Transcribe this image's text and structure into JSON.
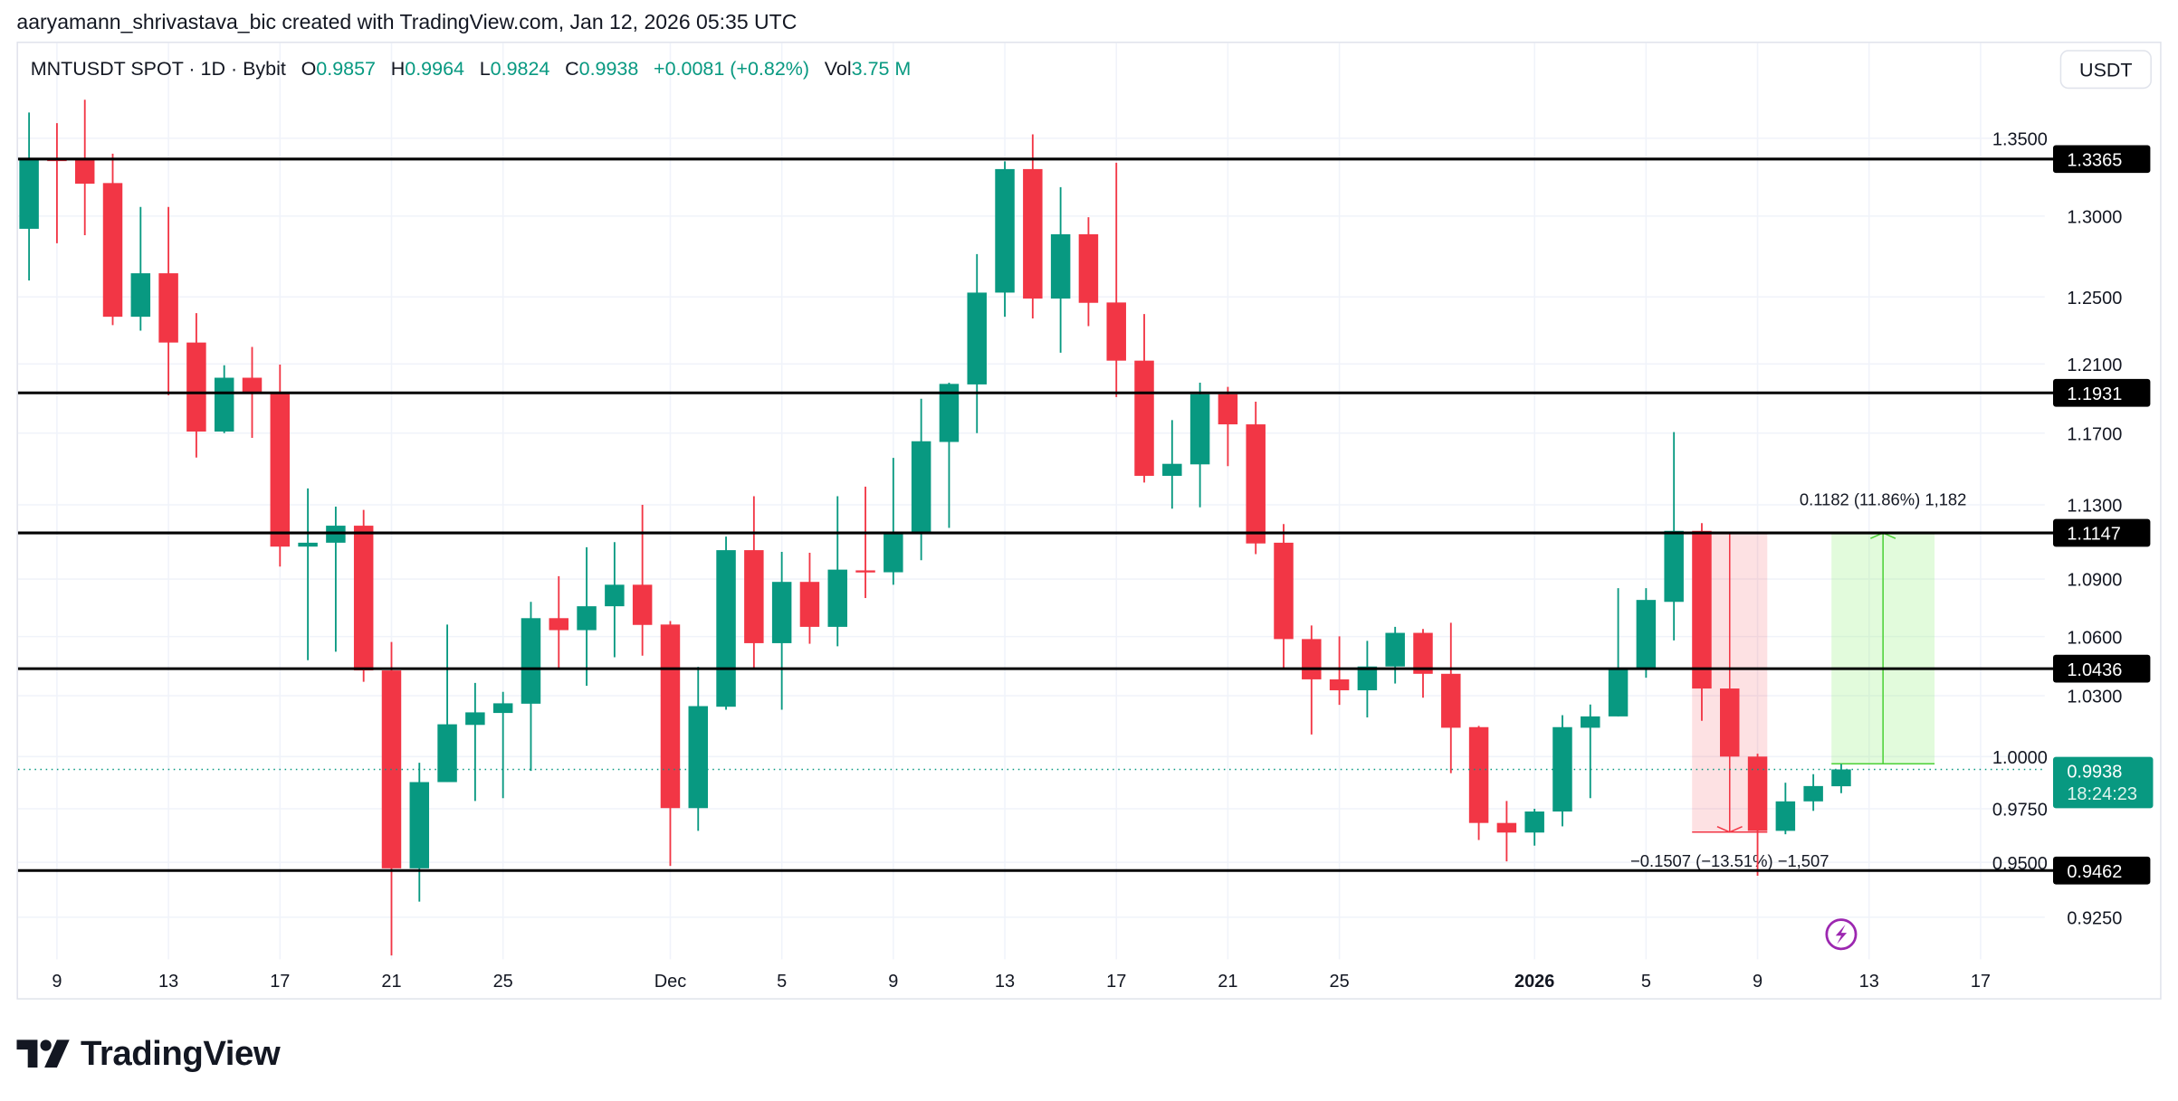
{
  "attribution": "aaryamann_shrivastava_bic created with TradingView.com, Jan 12, 2026 05:35 UTC",
  "legend": {
    "symbol": "MNTUSDT SPOT · 1D · Bybit",
    "open_label": "O",
    "open": "0.9857",
    "high_label": "H",
    "high": "0.9964",
    "low_label": "L",
    "low": "0.9824",
    "close_label": "C",
    "close": "0.9938",
    "change": "+0.0081 (+0.82%)",
    "vol_label": "Vol",
    "vol": "3.75 M"
  },
  "currency_button": "USDT",
  "footer": {
    "brand": "TradingView"
  },
  "colors": {
    "up": "#089981",
    "down": "#f23645",
    "level": "#000000",
    "grid": "#f0f3fa",
    "alert": "#9c27b0"
  },
  "chart_data": {
    "type": "candlestick",
    "y_scale": "log",
    "grid": true,
    "y_ticks": [
      "1.3500",
      "1.3000",
      "1.2500",
      "1.2100",
      "1.1700",
      "1.1300",
      "1.0900",
      "1.0600",
      "1.0300",
      "1.0000",
      "0.9750",
      "0.9500",
      "0.9250"
    ],
    "x_ticks": [
      {
        "label": "9",
        "date": "2025-11-09"
      },
      {
        "label": "13",
        "date": "2025-11-13"
      },
      {
        "label": "17",
        "date": "2025-11-17"
      },
      {
        "label": "21",
        "date": "2025-11-21"
      },
      {
        "label": "25",
        "date": "2025-11-25"
      },
      {
        "label": "Dec",
        "date": "2025-12-01"
      },
      {
        "label": "5",
        "date": "2025-12-05"
      },
      {
        "label": "9",
        "date": "2025-12-09"
      },
      {
        "label": "13",
        "date": "2025-12-13"
      },
      {
        "label": "17",
        "date": "2025-12-17"
      },
      {
        "label": "21",
        "date": "2025-12-21"
      },
      {
        "label": "25",
        "date": "2025-12-25"
      },
      {
        "label": "2026",
        "date": "2026-01-01",
        "bold": true
      },
      {
        "label": "5",
        "date": "2026-01-05"
      },
      {
        "label": "9",
        "date": "2026-01-09"
      },
      {
        "label": "13",
        "date": "2026-01-13"
      },
      {
        "label": "17",
        "date": "2026-01-17"
      }
    ],
    "levels": [
      "1.3365",
      "1.1931",
      "1.1147",
      "1.0436",
      "0.9462"
    ],
    "last_price": {
      "value": "0.9938",
      "countdown": "18:24:23"
    },
    "candles_columns": [
      "date",
      "open",
      "high",
      "low",
      "close"
    ],
    "candles": [
      [
        "2025-11-08",
        1.292,
        1.367,
        1.26,
        1.3365
      ],
      [
        "2025-11-09",
        1.3365,
        1.36,
        1.283,
        1.336
      ],
      [
        "2025-11-10",
        1.3365,
        1.3755,
        1.288,
        1.3206
      ],
      [
        "2025-11-11",
        1.321,
        1.34,
        1.233,
        1.238
      ],
      [
        "2025-11-12",
        1.238,
        1.3058,
        1.2297,
        1.2644
      ],
      [
        "2025-11-13",
        1.2644,
        1.3058,
        1.1917,
        1.2226
      ],
      [
        "2025-11-14",
        1.2226,
        1.2402,
        1.1562,
        1.1709
      ],
      [
        "2025-11-15",
        1.1709,
        1.2092,
        1.17,
        1.2019
      ],
      [
        "2025-11-16",
        1.2019,
        1.22,
        1.1673,
        1.1934
      ],
      [
        "2025-11-17",
        1.1934,
        1.2096,
        1.0966,
        1.1073
      ],
      [
        "2025-11-18",
        1.1073,
        1.139,
        1.0479,
        1.1094
      ],
      [
        "2025-11-19",
        1.1094,
        1.129,
        1.0522,
        1.1186
      ],
      [
        "2025-11-20",
        1.1186,
        1.1272,
        1.037,
        1.0427
      ],
      [
        "2025-11-21",
        1.0427,
        1.0572,
        0.908,
        0.9472
      ],
      [
        "2025-11-22",
        0.9472,
        0.997,
        0.932,
        0.9877
      ],
      [
        "2025-11-23",
        0.9877,
        1.0662,
        0.9877,
        1.0158
      ],
      [
        "2025-11-24",
        1.0155,
        1.0364,
        0.9787,
        1.0217
      ],
      [
        "2025-11-25",
        1.0214,
        1.0319,
        0.98,
        1.0262
      ],
      [
        "2025-11-26",
        1.026,
        1.078,
        0.9931,
        1.0695
      ],
      [
        "2025-11-27",
        1.0695,
        1.0915,
        1.0436,
        1.0633
      ],
      [
        "2025-11-28",
        1.0633,
        1.107,
        1.035,
        1.0757
      ],
      [
        "2025-11-29",
        1.0757,
        1.1097,
        1.0494,
        1.087
      ],
      [
        "2025-11-30",
        1.087,
        1.13,
        1.0502,
        1.066
      ],
      [
        "2025-12-01",
        1.0662,
        1.068,
        0.9483,
        0.9753
      ],
      [
        "2025-12-02",
        0.9753,
        1.0445,
        0.9646,
        1.0248
      ],
      [
        "2025-12-03",
        1.0245,
        1.1127,
        1.023,
        1.1054
      ],
      [
        "2025-12-04",
        1.1054,
        1.1347,
        1.0436,
        1.0566
      ],
      [
        "2025-12-05",
        1.0566,
        1.1045,
        1.023,
        1.0885
      ],
      [
        "2025-12-06",
        1.0885,
        1.104,
        1.0563,
        1.065
      ],
      [
        "2025-12-07",
        1.065,
        1.1347,
        1.055,
        1.095
      ],
      [
        "2025-12-08",
        1.0946,
        1.14,
        1.08,
        1.0938
      ],
      [
        "2025-12-09",
        1.0936,
        1.156,
        1.087,
        1.114
      ],
      [
        "2025-12-10",
        1.114,
        1.1897,
        1.1,
        1.1654
      ],
      [
        "2025-12-11",
        1.165,
        1.199,
        1.1174,
        1.1983
      ],
      [
        "2025-12-12",
        1.198,
        1.2762,
        1.17,
        1.2526
      ],
      [
        "2025-12-13",
        1.2526,
        1.335,
        1.238,
        1.33
      ],
      [
        "2025-12-14",
        1.33,
        1.3526,
        1.237,
        1.249
      ],
      [
        "2025-12-15",
        1.249,
        1.3184,
        1.2166,
        1.2886
      ],
      [
        "2025-12-16",
        1.2886,
        1.2993,
        1.2324,
        1.2464
      ],
      [
        "2025-12-17",
        1.2466,
        1.3341,
        1.1907,
        1.2119
      ],
      [
        "2025-12-18",
        1.2119,
        1.2396,
        1.1423,
        1.146
      ],
      [
        "2025-12-19",
        1.146,
        1.1774,
        1.1279,
        1.1527
      ],
      [
        "2025-12-20",
        1.1524,
        1.199,
        1.1286,
        1.1923
      ],
      [
        "2025-12-21",
        1.1923,
        1.1966,
        1.1514,
        1.175
      ],
      [
        "2025-12-22",
        1.175,
        1.188,
        1.1033,
        1.109
      ],
      [
        "2025-12-23",
        1.1094,
        1.1195,
        1.0436,
        1.0587
      ],
      [
        "2025-12-24",
        1.0587,
        1.0657,
        1.0108,
        1.0382
      ],
      [
        "2025-12-25",
        1.0382,
        1.0601,
        1.0254,
        1.0327
      ],
      [
        "2025-12-26",
        1.0327,
        1.0578,
        1.0192,
        1.0447
      ],
      [
        "2025-12-27",
        1.0447,
        1.065,
        1.0361,
        1.0619
      ],
      [
        "2025-12-28",
        1.0619,
        1.0639,
        1.029,
        1.041
      ],
      [
        "2025-12-29",
        1.041,
        1.0671,
        0.992,
        1.0141
      ],
      [
        "2025-12-30",
        1.0144,
        1.015,
        0.9603,
        0.9683
      ],
      [
        "2025-12-31",
        0.9683,
        0.9787,
        0.9504,
        0.9638
      ],
      [
        "2026-01-01",
        0.9638,
        0.975,
        0.9577,
        0.9737
      ],
      [
        "2026-01-02",
        0.9737,
        1.0203,
        0.9667,
        1.0144
      ],
      [
        "2026-01-03",
        1.0141,
        1.0256,
        0.98,
        1.0197
      ],
      [
        "2026-01-04",
        1.0197,
        1.0852,
        1.0197,
        1.0433
      ],
      [
        "2026-01-05",
        1.0433,
        1.0852,
        1.039,
        1.079
      ],
      [
        "2026-01-06",
        1.078,
        1.1706,
        1.058,
        1.1158
      ],
      [
        "2026-01-07",
        1.1158,
        1.12,
        1.0175,
        1.0336
      ],
      [
        "2026-01-08",
        1.0336,
        1.0336,
        1.0,
        1.0
      ],
      [
        "2026-01-09",
        1.0,
        1.0014,
        0.9438,
        0.9646
      ],
      [
        "2026-01-10",
        0.9646,
        0.9874,
        0.963,
        0.9785
      ],
      [
        "2026-01-11",
        0.9785,
        0.9915,
        0.974,
        0.9858
      ],
      [
        "2026-01-12",
        0.9857,
        0.9964,
        0.9824,
        0.9938
      ]
    ],
    "measurements": [
      {
        "direction": "down",
        "label": "−0.1507 (−13.51%) −1,507",
        "from_date": "2026-01-07",
        "to_date": "2026-01-09",
        "from_price": 1.1147,
        "to_price": 0.964
      },
      {
        "direction": "up",
        "label": "0.1182 (11.86%) 1,182",
        "from_date": "2026-01-12",
        "to_date": "2026-01-15",
        "from_price": 0.9965,
        "to_price": 1.1147
      }
    ],
    "alert_icon": {
      "name": "lightning-alert-icon",
      "date": "2026-01-12"
    }
  }
}
